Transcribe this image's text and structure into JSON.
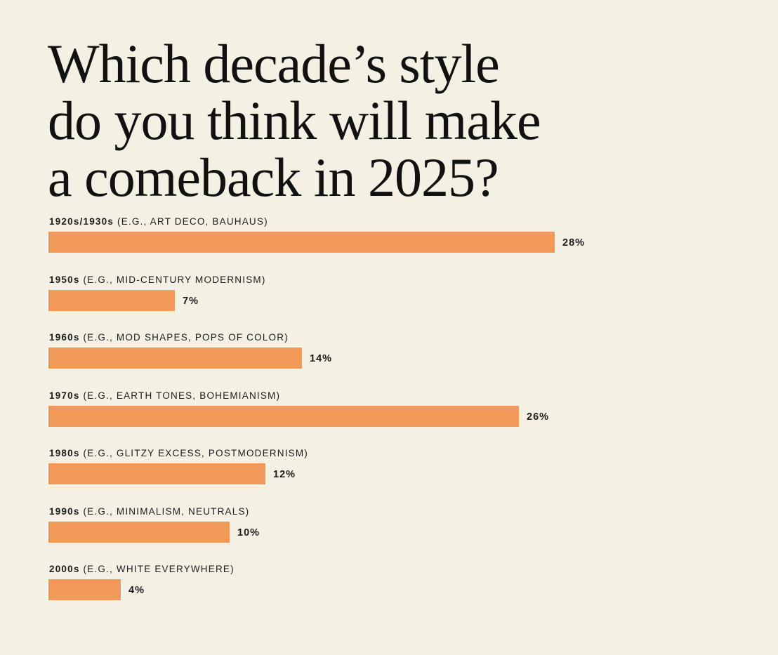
{
  "title_lines": [
    "Which decade’s style",
    "do you think will make",
    "a comeback in 2025?"
  ],
  "colors": {
    "background": "#f5f0e4",
    "bar": "#f2995a",
    "text": "#111111"
  },
  "chart_data": {
    "type": "bar",
    "orientation": "horizontal",
    "title": "Which decade’s style do you think will make a comeback in 2025?",
    "categories": [
      "1920s/1930s (E.G., ART DECO, BAUHAUS)",
      "1950s (E.G., MID-CENTURY MODERNISM)",
      "1960s (E.G., MOD SHAPES, POPS OF COLOR)",
      "1970s (E.G., EARTH TONES, BOHEMIANISM)",
      "1980s (E.G., GLITZY EXCESS, POSTMODERNISM)",
      "1990s (E.G., MINIMALISM, NEUTRALS)",
      "2000s (E.G., WHITE EVERYWHERE)"
    ],
    "decades": [
      "1920s/1930s",
      "1950s",
      "1960s",
      "1970s",
      "1980s",
      "1990s",
      "2000s"
    ],
    "examples": [
      " (E.G., ART DECO, BAUHAUS)",
      " (E.G., MID-CENTURY MODERNISM)",
      " (E.G., MOD SHAPES, POPS OF COLOR)",
      " (E.G., EARTH TONES, BOHEMIANISM)",
      " (E.G., GLITZY EXCESS, POSTMODERNISM)",
      " (E.G., MINIMALISM, NEUTRALS)",
      " (E.G., WHITE EVERYWHERE)"
    ],
    "values": [
      28,
      7,
      14,
      26,
      12,
      10,
      4
    ],
    "value_labels": [
      "28%",
      "7%",
      "14%",
      "26%",
      "12%",
      "10%",
      "4%"
    ],
    "unit": "%",
    "xlim": [
      0,
      28
    ],
    "grid": false,
    "legend": "none"
  }
}
